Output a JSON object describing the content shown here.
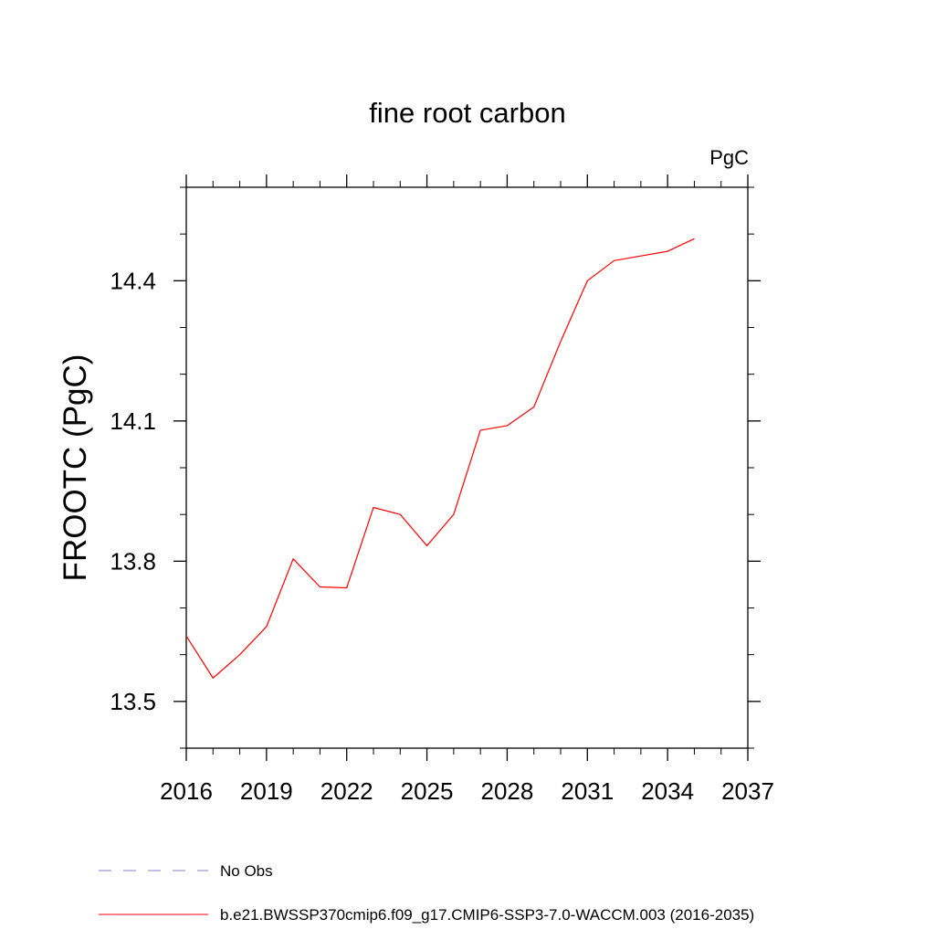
{
  "chart_data": {
    "type": "line",
    "title": "fine root carbon",
    "units_label": "PgC",
    "ylabel": "FROOTC  (PgC)",
    "xlabel": "",
    "xlim": [
      2016,
      2037
    ],
    "ylim": [
      13.4,
      14.6
    ],
    "x_ticks": [
      2016,
      2019,
      2022,
      2025,
      2028,
      2031,
      2034,
      2037
    ],
    "x_tick_labels": [
      "2016",
      "2019",
      "2022",
      "2025",
      "2028",
      "2031",
      "2034",
      "2037"
    ],
    "y_ticks": [
      13.5,
      13.8,
      14.1,
      14.4
    ],
    "y_tick_labels": [
      "13.5",
      "13.8",
      "14.1",
      "14.4"
    ],
    "y_minor_step": 0.1,
    "x_minor_step": 1,
    "grid": false,
    "legend_position": "bottom-left",
    "series": [
      {
        "name": "b.e21.BWSSP370cmip6.f09_g17.CMIP6-SSP3-7.0-WACCM.003 (2016-2035)",
        "color": "#ff0000",
        "dash": "solid",
        "x": [
          2016,
          2017,
          2018,
          2019,
          2020,
          2021,
          2022,
          2023,
          2024,
          2025,
          2026,
          2027,
          2028,
          2029,
          2030,
          2031,
          2032,
          2033,
          2034,
          2035
        ],
        "values": [
          13.64,
          13.55,
          13.6,
          13.66,
          13.805,
          13.745,
          13.743,
          13.915,
          13.9,
          13.833,
          13.9,
          14.08,
          14.09,
          14.13,
          14.27,
          14.4,
          14.443,
          14.453,
          14.463,
          14.49
        ]
      }
    ],
    "legend": [
      {
        "label": "No Obs",
        "color": "#8a7fc4",
        "dash": "dashed"
      },
      {
        "label": "b.e21.BWSSP370cmip6.f09_g17.CMIP6-SSP3-7.0-WACCM.003 (2016-2035)",
        "color": "#ff0000",
        "dash": "solid"
      }
    ]
  }
}
